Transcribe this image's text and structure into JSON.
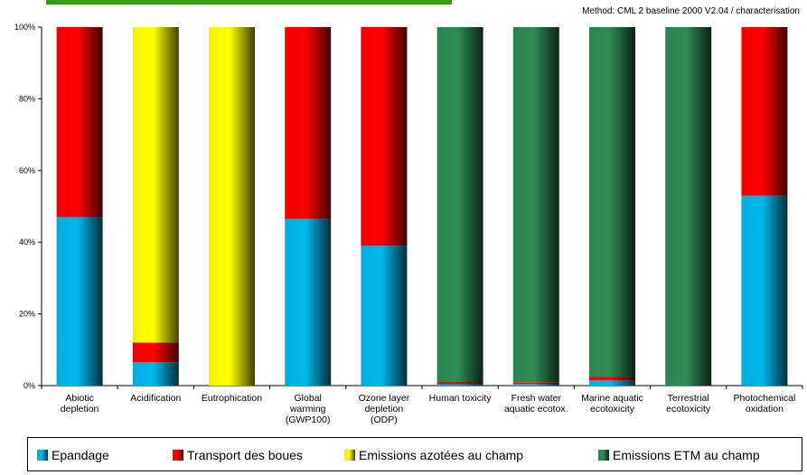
{
  "method_note": "Method: CML 2 baseline 2000 V2.04 / characterisation",
  "colors": {
    "Epandage": "#00b7ea",
    "Transport des boues": "#ff0000",
    "Emissions azotées au champ": "#ffff00",
    "Emissions ETM au champ": "#2e8b57",
    "top_bar": "#3a9a18"
  },
  "chart_data": {
    "type": "bar",
    "stacked": true,
    "normalized_percent": true,
    "categories": [
      [
        "Abiotic",
        "depletion"
      ],
      [
        "Acidification"
      ],
      [
        "Eutrophication"
      ],
      [
        "Global",
        "warming",
        "(GWP100)"
      ],
      [
        "Ozone layer",
        "depletion",
        "(ODP)"
      ],
      [
        "Human toxicity"
      ],
      [
        "Fresh water",
        "aquatic ecotox."
      ],
      [
        "Marine aquatic",
        "ecotoxicity"
      ],
      [
        "Terrestrial",
        "ecotoxicity"
      ],
      [
        "Photochemical",
        "oxidation"
      ]
    ],
    "series": [
      {
        "name": "Epandage",
        "values": [
          47,
          6.5,
          0,
          46.5,
          39,
          0.3,
          0.5,
          1.5,
          0,
          53
        ]
      },
      {
        "name": "Transport des boues",
        "values": [
          53,
          5.5,
          0,
          53.5,
          61,
          0.7,
          0.3,
          1.0,
          0,
          47
        ]
      },
      {
        "name": "Emissions azotées au champ",
        "values": [
          0,
          88,
          100,
          0,
          0,
          0,
          0,
          0,
          0,
          0
        ]
      },
      {
        "name": "Emissions ETM au champ",
        "values": [
          0,
          0,
          0,
          0,
          0,
          99,
          99.2,
          97.5,
          100,
          0
        ]
      }
    ],
    "ylim": [
      0,
      100
    ],
    "yticks": [
      "0%",
      "20%",
      "40%",
      "60%",
      "80%",
      "100%"
    ],
    "legend_position": "bottom"
  }
}
